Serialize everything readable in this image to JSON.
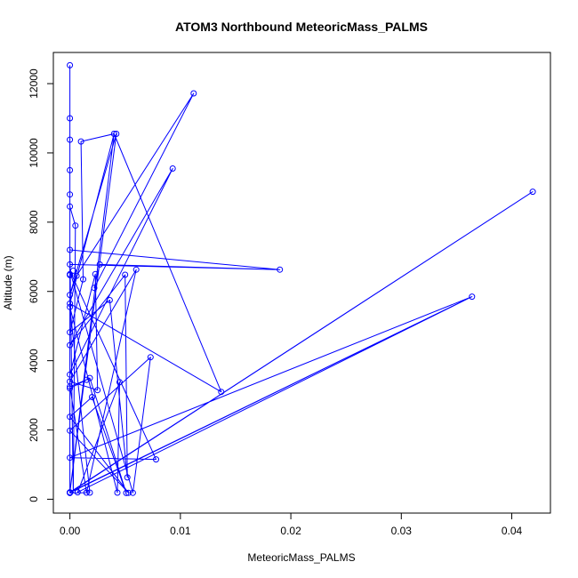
{
  "chart_data": {
    "type": "line",
    "title": "ATOM3 Northbound MeteoricMass_PALMS",
    "xlabel": "MeteoricMass_PALMS",
    "ylabel": "Altitude (m)",
    "xlim": [
      -0.0015,
      0.0435
    ],
    "ylim": [
      -400,
      12900
    ],
    "xticks": [
      0.0,
      0.01,
      0.02,
      0.03,
      0.04
    ],
    "xtick_labels": [
      "0.00",
      "0.01",
      "0.02",
      "0.03",
      "0.04"
    ],
    "yticks": [
      0,
      2000,
      4000,
      6000,
      8000,
      10000,
      12000
    ],
    "ytick_labels": [
      "0",
      "2000",
      "4000",
      "6000",
      "8000",
      "10000",
      "12000"
    ],
    "grid": false,
    "series": [
      {
        "color": "#0000ff",
        "marker": "open-circle",
        "points": [
          [
            0.0,
            12530
          ],
          [
            0.0,
            11000
          ],
          [
            0.0,
            10380
          ],
          [
            0.0,
            9500
          ],
          [
            0.0,
            8800
          ],
          [
            0.0,
            8450
          ],
          [
            0.0,
            7200
          ],
          [
            0.0,
            6780
          ],
          [
            0.0,
            6500
          ],
          [
            0.0,
            6470
          ],
          [
            0.0,
            5900
          ],
          [
            0.0,
            5650
          ],
          [
            0.0,
            5550
          ],
          [
            0.0,
            4820
          ],
          [
            0.0,
            4450
          ],
          [
            0.0,
            3600
          ],
          [
            0.0,
            3400
          ],
          [
            0.0,
            3250
          ],
          [
            0.0,
            3200
          ],
          [
            0.0,
            2380
          ],
          [
            0.0,
            1980
          ],
          [
            0.0,
            1200
          ],
          [
            0.0,
            200
          ],
          [
            0.0,
            190
          ],
          [
            0.0,
            180
          ],
          [
            0.0005,
            7900
          ],
          [
            0.0003,
            6600
          ],
          [
            0.0006,
            6450
          ],
          [
            0.001,
            10330
          ],
          [
            0.0012,
            6350
          ],
          [
            0.0015,
            3450
          ],
          [
            0.0018,
            3500
          ],
          [
            0.002,
            2950
          ],
          [
            0.0022,
            6100
          ],
          [
            0.0023,
            6500
          ],
          [
            0.0025,
            3150
          ],
          [
            0.0027,
            6780
          ],
          [
            0.004,
            10550
          ],
          [
            0.0042,
            10550
          ],
          [
            0.0036,
            5750
          ],
          [
            0.0045,
            3380
          ],
          [
            0.005,
            6480
          ],
          [
            0.0052,
            630
          ],
          [
            0.006,
            6630
          ],
          [
            0.0073,
            4100
          ],
          [
            0.0078,
            1150
          ],
          [
            0.0093,
            9550
          ],
          [
            0.0112,
            11720
          ],
          [
            0.0137,
            3100
          ],
          [
            0.019,
            6630
          ],
          [
            0.0364,
            5850
          ],
          [
            0.0419,
            8880
          ],
          [
            0.0007,
            200
          ],
          [
            0.0015,
            190
          ],
          [
            0.0018,
            190
          ],
          [
            0.0043,
            190
          ],
          [
            0.0051,
            180
          ],
          [
            0.0053,
            185
          ],
          [
            0.0057,
            185
          ]
        ],
        "path": [
          [
            0.0,
            12530
          ],
          [
            0.0,
            200
          ],
          [
            0.0,
            11000
          ],
          [
            0.0,
            190
          ],
          [
            0.0,
            10380
          ],
          [
            0.0,
            6500
          ],
          [
            0.0,
            8800
          ],
          [
            0.0,
            180
          ],
          [
            0.0,
            8450
          ],
          [
            0.0005,
            7900
          ],
          [
            0.0003,
            200
          ],
          [
            0.0,
            7200
          ],
          [
            0.019,
            6630
          ],
          [
            0.0,
            6780
          ],
          [
            0.019,
            6630
          ],
          [
            0.0027,
            6780
          ],
          [
            0.0022,
            6100
          ],
          [
            0.0112,
            11720
          ],
          [
            0.0006,
            6450
          ],
          [
            0.0,
            5900
          ],
          [
            0.0042,
            10550
          ],
          [
            0.0,
            200
          ],
          [
            0.004,
            10550
          ],
          [
            0.0,
            5650
          ],
          [
            0.0137,
            3100
          ],
          [
            0.004,
            10550
          ],
          [
            0.001,
            10330
          ],
          [
            0.0012,
            6350
          ],
          [
            0.0,
            4820
          ],
          [
            0.0036,
            5750
          ],
          [
            0.0052,
            630
          ],
          [
            0.005,
            6480
          ],
          [
            0.0,
            4450
          ],
          [
            0.0093,
            9550
          ],
          [
            0.0,
            3600
          ],
          [
            0.0023,
            6500
          ],
          [
            0.0025,
            3150
          ],
          [
            0.0,
            3400
          ],
          [
            0.006,
            6630
          ],
          [
            0.0015,
            190
          ],
          [
            0.0,
            3250
          ],
          [
            0.0015,
            3450
          ],
          [
            0.0,
            3200
          ],
          [
            0.0018,
            3500
          ],
          [
            0.0051,
            180
          ],
          [
            0.002,
            2950
          ],
          [
            0.0,
            2380
          ],
          [
            0.0053,
            185
          ],
          [
            0.0,
            1980
          ],
          [
            0.0073,
            4100
          ],
          [
            0.0057,
            185
          ],
          [
            0.0,
            6600
          ],
          [
            0.0078,
            1150
          ],
          [
            0.0,
            1200
          ],
          [
            0.0364,
            5850
          ],
          [
            0.0,
            190
          ],
          [
            0.0419,
            8880
          ],
          [
            0.0,
            200
          ],
          [
            0.0364,
            5850
          ],
          [
            0.0007,
            200
          ],
          [
            0.0045,
            3380
          ],
          [
            0.0043,
            190
          ],
          [
            0.0,
            5550
          ],
          [
            0.0018,
            190
          ],
          [
            0.0,
            180
          ]
        ]
      }
    ]
  }
}
